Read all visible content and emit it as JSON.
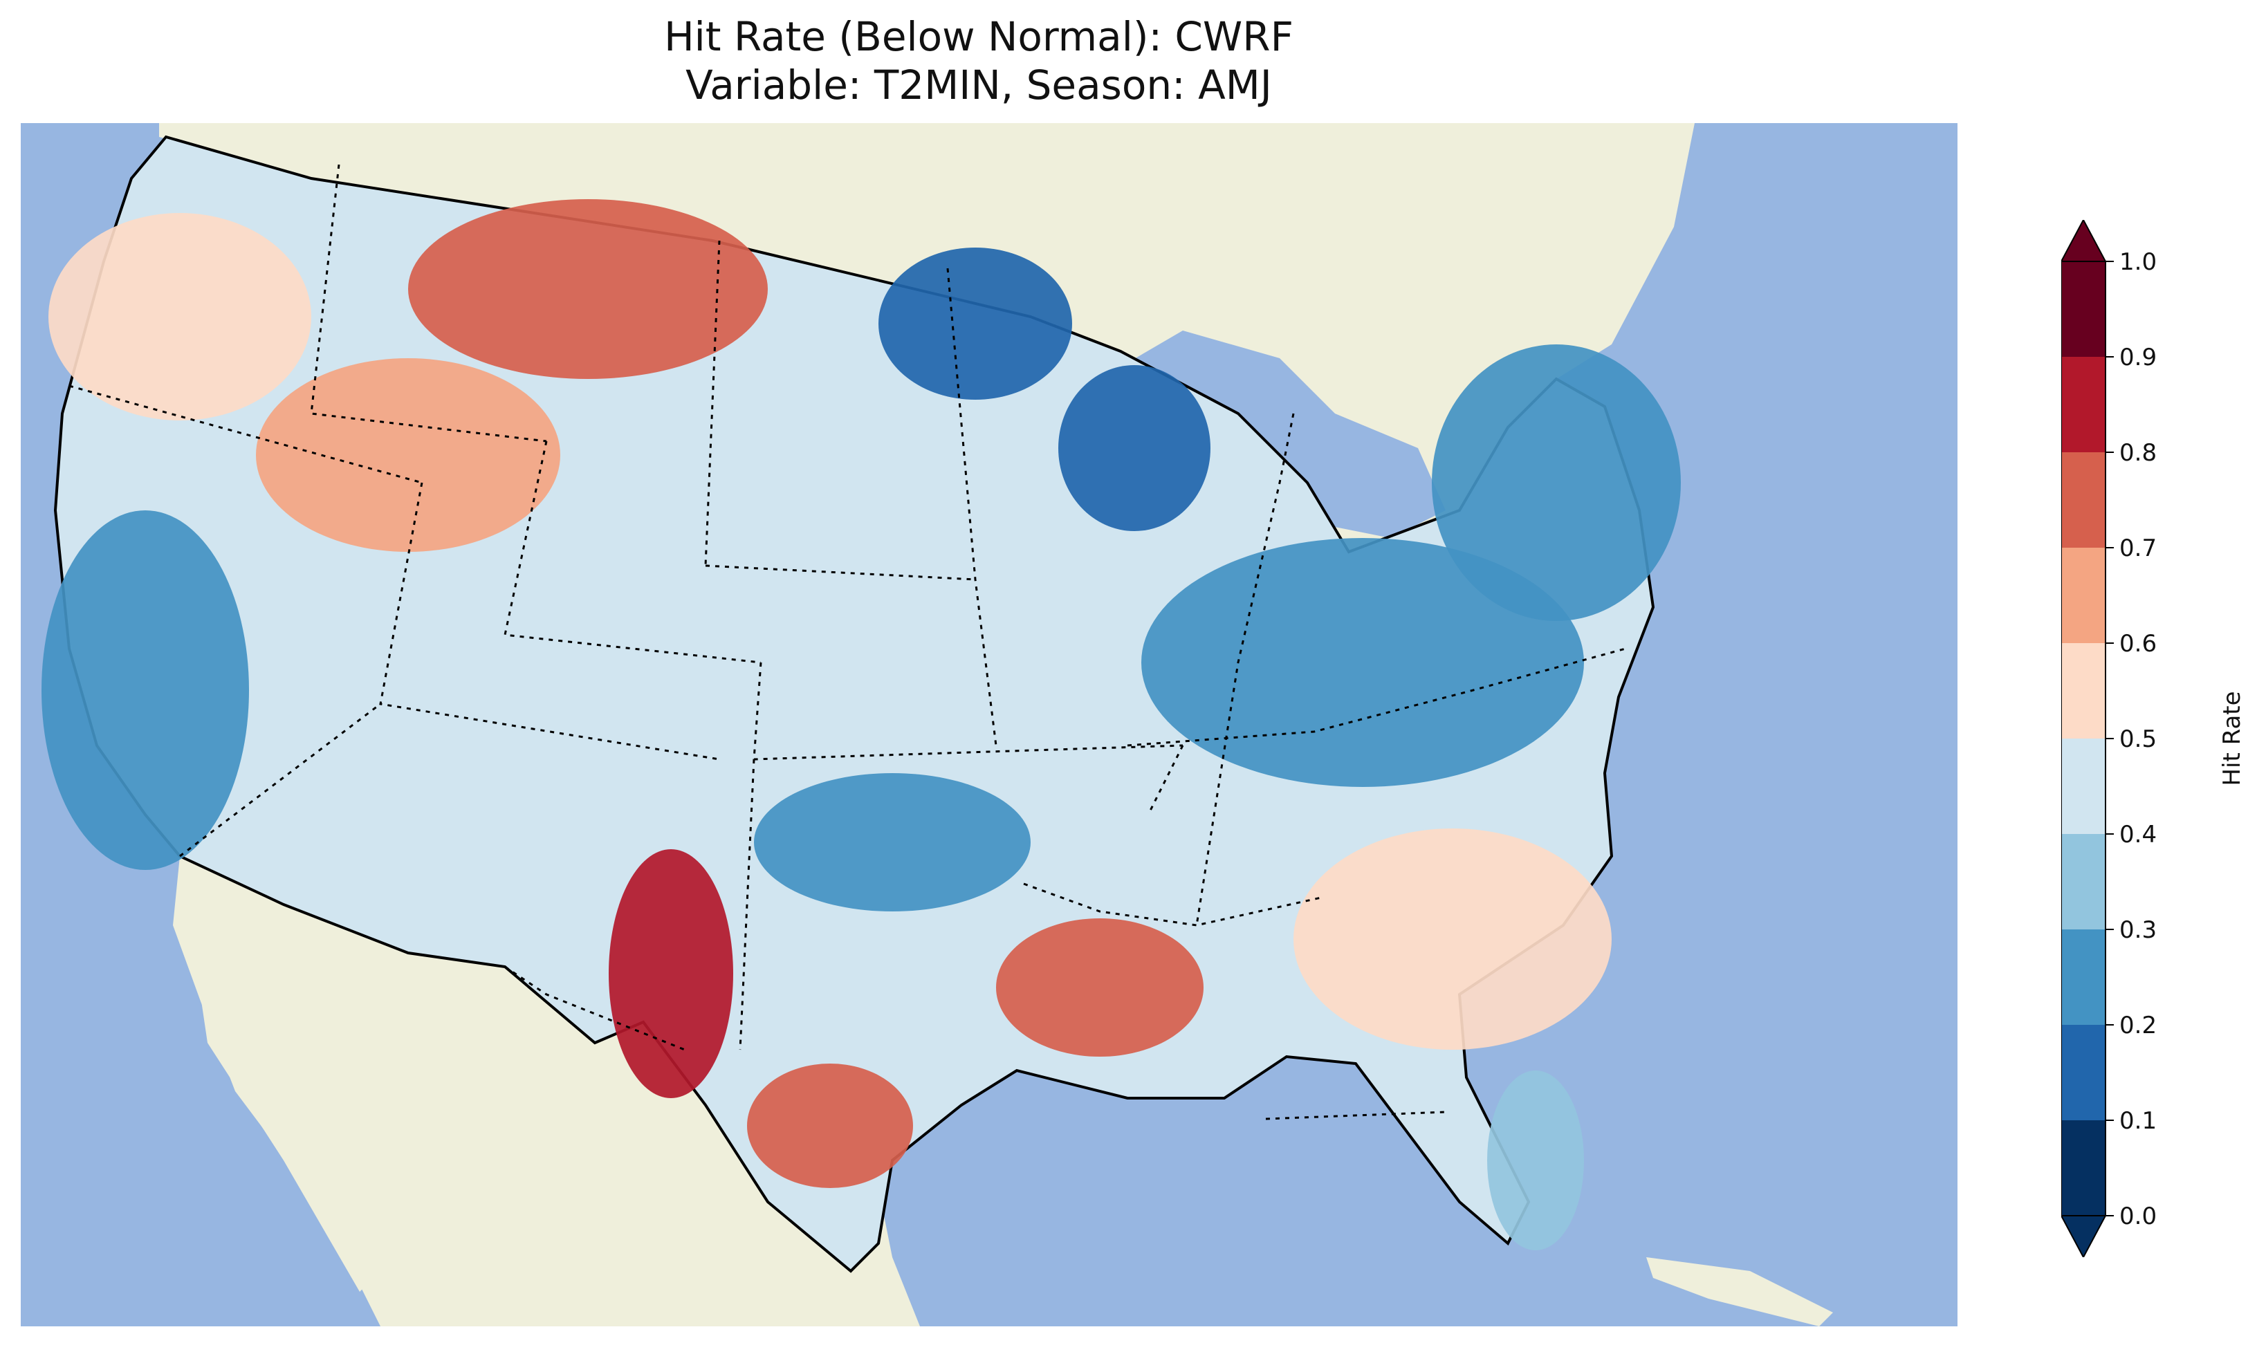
{
  "title": {
    "line1": "Hit Rate (Below Normal): CWRF",
    "line2": "Variable: T2MIN, Season: AMJ"
  },
  "colorbar": {
    "label": "Hit Rate",
    "ticks": [
      "0.0",
      "0.1",
      "0.2",
      "0.3",
      "0.4",
      "0.5",
      "0.6",
      "0.7",
      "0.8",
      "0.9",
      "1.0"
    ],
    "colors": [
      "#053061",
      "#2166ac",
      "#4393c3",
      "#92c5de",
      "#d1e5f0",
      "#fddbc7",
      "#f4a582",
      "#d6604d",
      "#b2182b",
      "#67001f"
    ],
    "under_color": "#053061",
    "over_color": "#67001f"
  },
  "map_colors": {
    "ocean": "#97b6e1",
    "land": "#efefdb",
    "coast": "#000000"
  },
  "regions": [
    {
      "name": "pacific-northwest",
      "value": 0.55
    },
    {
      "name": "northern-rockies-montana",
      "value": 0.72
    },
    {
      "name": "idaho-oregon",
      "value": 0.62
    },
    {
      "name": "california-coast",
      "value": 0.25
    },
    {
      "name": "northern-minnesota",
      "value": 0.15
    },
    {
      "name": "wisconsin",
      "value": 0.18
    },
    {
      "name": "ohio-valley",
      "value": 0.22
    },
    {
      "name": "new-england-interior",
      "value": 0.28
    },
    {
      "name": "oklahoma",
      "value": 0.25
    },
    {
      "name": "west-texas-new-mexico",
      "value": 0.85
    },
    {
      "name": "louisiana-arkansas",
      "value": 0.75
    },
    {
      "name": "south-texas",
      "value": 0.72
    },
    {
      "name": "southeast",
      "value": 0.55
    },
    {
      "name": "florida",
      "value": 0.35
    }
  ]
}
